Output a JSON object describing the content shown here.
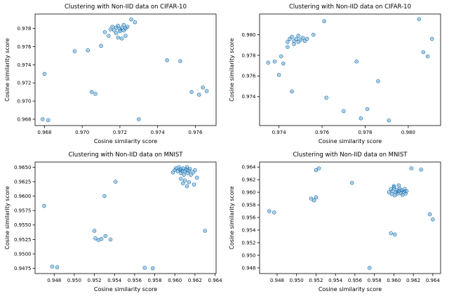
{
  "figure": {
    "background": "#ffffff",
    "marker_color": "#1f77b4",
    "frame_color": "#000000"
  },
  "chart_data": [
    {
      "type": "scatter",
      "title": "Clustering with Non-IID data on CIFAR-10",
      "xlabel": "Cosine similarity score",
      "ylabel": "Cosine similarity score",
      "grid": false,
      "legend": "none",
      "xlim": [
        0.9675,
        0.9771
      ],
      "ylim": [
        0.9673,
        0.9796
      ],
      "xticks": {
        "values": [
          0.968,
          0.97,
          0.972,
          0.974,
          0.976
        ],
        "labels": [
          "0.968",
          "0.970",
          "0.972",
          "0.974",
          "0.976"
        ]
      },
      "yticks": {
        "values": [
          0.968,
          0.97,
          0.972,
          0.974,
          0.976,
          0.978
        ],
        "labels": [
          "0.968",
          "0.970",
          "0.972",
          "0.974",
          "0.976",
          "0.978"
        ]
      },
      "points": [
        [
          0.968,
          0.973
        ],
        [
          0.9679,
          0.968
        ],
        [
          0.9682,
          0.9679
        ],
        [
          0.9696,
          0.9755
        ],
        [
          0.9705,
          0.971
        ],
        [
          0.9707,
          0.9708
        ],
        [
          0.9703,
          0.9756
        ],
        [
          0.971,
          0.9761
        ],
        [
          0.9712,
          0.9776
        ],
        [
          0.9714,
          0.9772
        ],
        [
          0.9715,
          0.9779
        ],
        [
          0.9716,
          0.9782
        ],
        [
          0.9717,
          0.9778
        ],
        [
          0.9718,
          0.9781
        ],
        [
          0.9718,
          0.9775
        ],
        [
          0.9719,
          0.9783
        ],
        [
          0.972,
          0.9779
        ],
        [
          0.972,
          0.9777
        ],
        [
          0.9721,
          0.9781
        ],
        [
          0.9722,
          0.9784
        ],
        [
          0.9722,
          0.9778
        ],
        [
          0.9723,
          0.978
        ],
        [
          0.9724,
          0.9782
        ],
        [
          0.9719,
          0.977
        ],
        [
          0.9721,
          0.9769
        ],
        [
          0.9723,
          0.9772
        ],
        [
          0.9726,
          0.979
        ],
        [
          0.9728,
          0.9787
        ],
        [
          0.973,
          0.968
        ],
        [
          0.9745,
          0.9745
        ],
        [
          0.9752,
          0.9744
        ],
        [
          0.9758,
          0.971
        ],
        [
          0.9762,
          0.9707
        ],
        [
          0.9764,
          0.9715
        ],
        [
          0.9766,
          0.9711
        ]
      ]
    },
    {
      "type": "scatter",
      "title": "Clustering with Non-IID data on CIFAR-10",
      "xlabel": "Cosine similarity score",
      "ylabel": "Cosine similarity score",
      "grid": false,
      "legend": "none",
      "xlim": [
        0.9731,
        0.9815
      ],
      "ylim": [
        0.9712,
        0.982
      ],
      "xticks": {
        "values": [
          0.974,
          0.976,
          0.978,
          0.98
        ],
        "labels": [
          "0.974",
          "0.976",
          "0.978",
          "0.980"
        ]
      },
      "yticks": {
        "values": [
          0.974,
          0.976,
          0.978,
          0.98
        ],
        "labels": [
          "0.974",
          "0.976",
          "0.978",
          "0.980"
        ]
      },
      "points": [
        [
          0.9735,
          0.9773
        ],
        [
          0.9738,
          0.9774
        ],
        [
          0.974,
          0.9761
        ],
        [
          0.9741,
          0.9779
        ],
        [
          0.9742,
          0.9772
        ],
        [
          0.9744,
          0.9788
        ],
        [
          0.9744,
          0.9793
        ],
        [
          0.9745,
          0.9796
        ],
        [
          0.9746,
          0.9798
        ],
        [
          0.9747,
          0.9794
        ],
        [
          0.9747,
          0.9791
        ],
        [
          0.9748,
          0.9796
        ],
        [
          0.9749,
          0.9799
        ],
        [
          0.9749,
          0.9793
        ],
        [
          0.975,
          0.9795
        ],
        [
          0.9751,
          0.9797
        ],
        [
          0.9752,
          0.9794
        ],
        [
          0.9753,
          0.9796
        ],
        [
          0.9746,
          0.9745
        ],
        [
          0.9756,
          0.98
        ],
        [
          0.9761,
          0.9813
        ],
        [
          0.9762,
          0.9739
        ],
        [
          0.977,
          0.9726
        ],
        [
          0.9776,
          0.9774
        ],
        [
          0.9778,
          0.9719
        ],
        [
          0.9781,
          0.9728
        ],
        [
          0.9786,
          0.9755
        ],
        [
          0.9791,
          0.9717
        ],
        [
          0.9805,
          0.9815
        ],
        [
          0.9807,
          0.9783
        ],
        [
          0.9809,
          0.9779
        ],
        [
          0.9811,
          0.9796
        ]
      ]
    },
    {
      "type": "scatter",
      "title": "Clustering with Non-IID data on MNIST",
      "xlabel": "Cosine similarity score",
      "ylabel": "Cosine similarity score",
      "grid": false,
      "legend": "none",
      "xlim": [
        0.9461,
        0.9641
      ],
      "ylim": [
        0.9466,
        0.9659
      ],
      "xticks": {
        "values": [
          0.948,
          0.95,
          0.952,
          0.954,
          0.956,
          0.958,
          0.96,
          0.962,
          0.964
        ],
        "labels": [
          "0.948",
          "0.950",
          "0.952",
          "0.954",
          "0.956",
          "0.958",
          "0.960",
          "0.962",
          "0.964"
        ]
      },
      "yticks": {
        "values": [
          0.9475,
          0.95,
          0.9525,
          0.955,
          0.9575,
          0.96,
          0.9625,
          0.965
        ],
        "labels": [
          "0.9475",
          "0.9500",
          "0.9525",
          "0.9550",
          "0.9575",
          "0.9600",
          "0.9625",
          "0.9650"
        ]
      },
      "points": [
        [
          0.947,
          0.9583
        ],
        [
          0.9478,
          0.9478
        ],
        [
          0.9483,
          0.9477
        ],
        [
          0.952,
          0.954
        ],
        [
          0.9521,
          0.9527
        ],
        [
          0.9524,
          0.9524
        ],
        [
          0.9527,
          0.9526
        ],
        [
          0.953,
          0.96
        ],
        [
          0.9531,
          0.9531
        ],
        [
          0.9536,
          0.9525
        ],
        [
          0.9541,
          0.9625
        ],
        [
          0.957,
          0.9476
        ],
        [
          0.9578,
          0.9475
        ],
        [
          0.9598,
          0.9641
        ],
        [
          0.96,
          0.9645
        ],
        [
          0.9601,
          0.9648
        ],
        [
          0.9603,
          0.9643
        ],
        [
          0.9604,
          0.965
        ],
        [
          0.9605,
          0.9646
        ],
        [
          0.9606,
          0.964
        ],
        [
          0.9607,
          0.9644
        ],
        [
          0.9608,
          0.9648
        ],
        [
          0.9609,
          0.9637
        ],
        [
          0.961,
          0.9643
        ],
        [
          0.9611,
          0.9646
        ],
        [
          0.9612,
          0.965
        ],
        [
          0.9613,
          0.964
        ],
        [
          0.9614,
          0.9644
        ],
        [
          0.9615,
          0.9647
        ],
        [
          0.9616,
          0.9637
        ],
        [
          0.9618,
          0.9641
        ],
        [
          0.962,
          0.9645
        ],
        [
          0.9606,
          0.963
        ],
        [
          0.961,
          0.9627
        ],
        [
          0.9614,
          0.9624
        ],
        [
          0.9619,
          0.962
        ],
        [
          0.9612,
          0.9617
        ],
        [
          0.9608,
          0.9622
        ],
        [
          0.9622,
          0.9632
        ],
        [
          0.963,
          0.954
        ]
      ]
    },
    {
      "type": "scatter",
      "title": "Clustering with Non-IID data on MNIST",
      "xlabel": "Cosine similarity score",
      "ylabel": "Cosine similarity score",
      "grid": false,
      "legend": "none",
      "xlim": [
        0.9462,
        0.9648
      ],
      "ylim": [
        0.9471,
        0.9648
      ],
      "xticks": {
        "values": [
          0.948,
          0.95,
          0.952,
          0.954,
          0.956,
          0.958,
          0.96,
          0.962,
          0.964
        ],
        "labels": [
          "0.948",
          "0.950",
          "0.952",
          "0.954",
          "0.956",
          "0.958",
          "0.960",
          "0.962",
          "0.964"
        ]
      },
      "yticks": {
        "values": [
          0.948,
          0.95,
          0.952,
          0.954,
          0.956,
          0.958,
          0.96,
          0.962,
          0.964
        ],
        "labels": [
          "0.948",
          "0.950",
          "0.952",
          "0.954",
          "0.956",
          "0.958",
          "0.960",
          "0.962",
          "0.964"
        ]
      },
      "points": [
        [
          0.9472,
          0.957
        ],
        [
          0.9477,
          0.9568
        ],
        [
          0.9515,
          0.959
        ],
        [
          0.9518,
          0.9587
        ],
        [
          0.952,
          0.9592
        ],
        [
          0.952,
          0.9635
        ],
        [
          0.9523,
          0.9638
        ],
        [
          0.9557,
          0.9615
        ],
        [
          0.9575,
          0.948
        ],
        [
          0.9597,
          0.9535
        ],
        [
          0.9601,
          0.9533
        ],
        [
          0.9595,
          0.96
        ],
        [
          0.9597,
          0.9605
        ],
        [
          0.9598,
          0.9597
        ],
        [
          0.9599,
          0.9602
        ],
        [
          0.96,
          0.9608
        ],
        [
          0.9601,
          0.9595
        ],
        [
          0.9602,
          0.96
        ],
        [
          0.9603,
          0.9604
        ],
        [
          0.9604,
          0.9598
        ],
        [
          0.9605,
          0.9602
        ],
        [
          0.9606,
          0.9606
        ],
        [
          0.9607,
          0.9599
        ],
        [
          0.9608,
          0.9603
        ],
        [
          0.9609,
          0.9596
        ],
        [
          0.961,
          0.9601
        ],
        [
          0.9611,
          0.9605
        ],
        [
          0.9605,
          0.9611
        ],
        [
          0.96,
          0.961
        ],
        [
          0.9612,
          0.9598
        ],
        [
          0.9613,
          0.9602
        ],
        [
          0.9618,
          0.9638
        ],
        [
          0.9628,
          0.9636
        ],
        [
          0.9637,
          0.9565
        ],
        [
          0.964,
          0.9557
        ]
      ]
    }
  ]
}
